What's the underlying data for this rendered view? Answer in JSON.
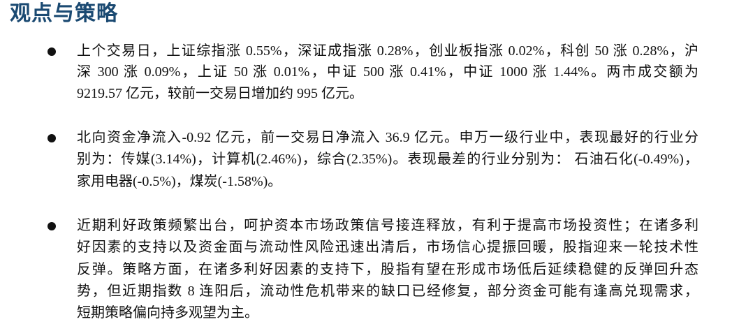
{
  "title": "观点与策略",
  "paragraphs": [
    {
      "lines": [
        "上个交易日，上证综指涨 0.55%，深证成指涨 0.28%，创业板指涨 0.02%，科创 50 涨 0.28%，沪",
        "深 300 涨 0.09%，上证 50 涨 0.01%，中证 500 涨 0.41%，中证 1000 涨 1.44%。两市成交额为",
        "9219.57 亿元，较前一交易日增加约 995 亿元。"
      ]
    },
    {
      "lines": [
        "北向资金净流入-0.92 亿元，前一交易日净流入 36.9 亿元。申万一级行业中，表现最好的行业分",
        "别为：传媒(3.14%)，计算机(2.46%)，综合(2.35%)。表现最差的行业分别为： 石油石化(-0.49%)，",
        "家用电器(-0.5%)，煤炭(-1.58%)。"
      ]
    },
    {
      "lines": [
        "近期利好政策频繁出台，呵护资本市场政策信号接连释放，有利于提高市场投资性；在诸多利",
        "好因素的支持以及资金面与流动性风险迅速出清后，市场信心提振回暖，股指迎来一轮技术性",
        "反弹。策略方面，在诸多利好因素的支持下，股指有望在形成市场低后延续稳健的反弹回升态",
        "势，但近期指数 8 连阳后，流动性危机带来的缺口已经修复，部分资金可能有逢高兑现需求，",
        "短期策略偏向持多观望为主。"
      ]
    }
  ]
}
